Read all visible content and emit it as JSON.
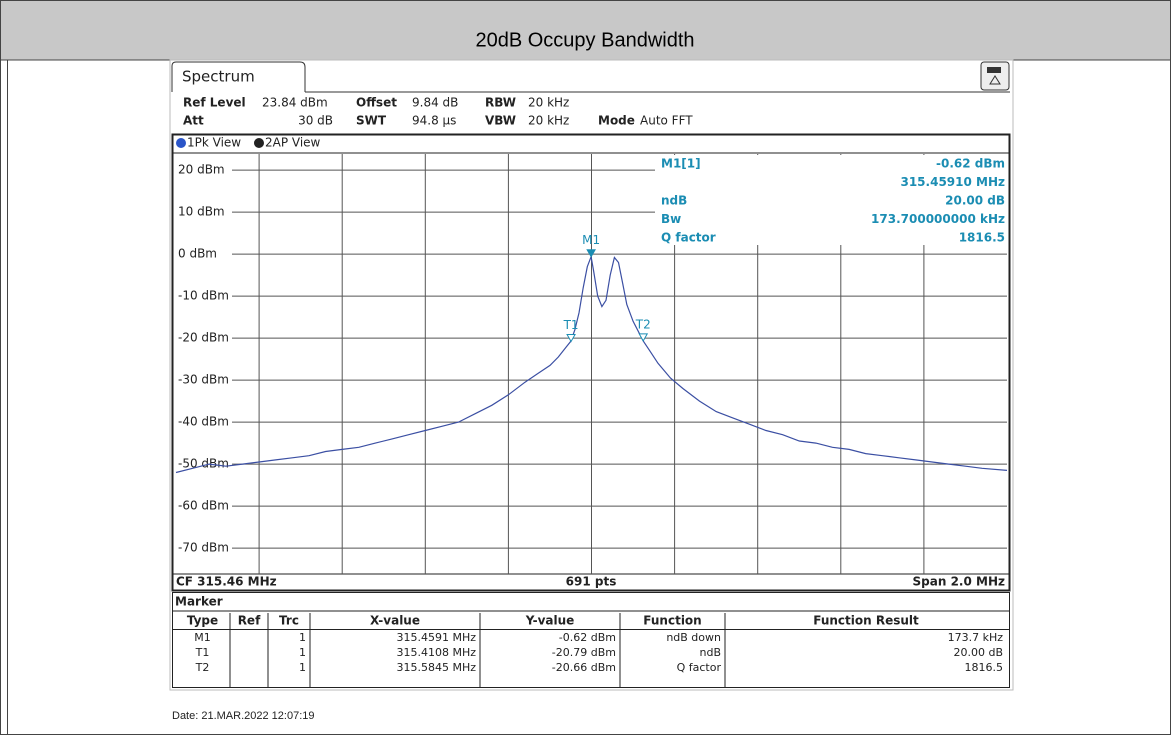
{
  "page_title": "20dB Occupy Bandwidth",
  "tab": "Spectrum",
  "settings": [
    [
      [
        "Ref Level",
        "23.84 dBm"
      ],
      [
        "Offset",
        "9.84 dB"
      ],
      [
        "RBW",
        "20 kHz"
      ]
    ],
    [
      [
        "Att",
        "30 dB"
      ],
      [
        "SWT",
        "94.8 µs"
      ],
      [
        "VBW",
        "20 kHz"
      ],
      [
        "Mode",
        "Auto FFT"
      ]
    ]
  ],
  "views": [
    "1Pk View",
    "2AP View"
  ],
  "readout": [
    [
      "M1[1]",
      "-0.62 dBm"
    ],
    [
      null,
      "315.45910 MHz"
    ],
    [
      "ndB",
      "20.00 dB"
    ],
    [
      "Bw",
      "173.700000000 kHz"
    ],
    [
      "Q factor",
      "1816.5"
    ]
  ],
  "chart_data": {
    "type": "line",
    "color": "#3b4fa3",
    "x": [
      314.46,
      314.5,
      314.54,
      314.58,
      314.62,
      314.66,
      314.7,
      314.74,
      314.78,
      314.82,
      314.86,
      314.9,
      314.94,
      314.98,
      315.02,
      315.06,
      315.1,
      315.14,
      315.18,
      315.22,
      315.26,
      315.3,
      315.33,
      315.36,
      315.38,
      315.4,
      315.41,
      315.42,
      315.43,
      315.44,
      315.45,
      315.4591,
      315.465,
      315.475,
      315.485,
      315.495,
      315.505,
      315.515,
      315.525,
      315.535,
      315.545,
      315.56,
      315.5845,
      315.6,
      315.62,
      315.65,
      315.68,
      315.72,
      315.76,
      315.8,
      315.84,
      315.88,
      315.92,
      315.96,
      316.0,
      316.04,
      316.08,
      316.12,
      316.16,
      316.2,
      316.24,
      316.28,
      316.32,
      316.36,
      316.4,
      316.46
    ],
    "values": [
      -52,
      -51,
      -50,
      -50.5,
      -50,
      -49.5,
      -49,
      -48.5,
      -48,
      -47,
      -46.5,
      -46,
      -45,
      -44,
      -43,
      -42,
      -41,
      -40,
      -38,
      -36,
      -33.5,
      -30.5,
      -28.5,
      -26.5,
      -24.5,
      -22,
      -20.79,
      -18,
      -14,
      -8,
      -3,
      -0.62,
      -4,
      -10,
      -12.5,
      -11,
      -5,
      -0.8,
      -2,
      -7,
      -12,
      -16,
      -20.66,
      -23,
      -26,
      -29.5,
      -32,
      -35,
      -37.5,
      -39,
      -40.5,
      -42,
      -43,
      -44.5,
      -45,
      -46,
      -46.5,
      -47.5,
      -48,
      -48.5,
      -49,
      -49.5,
      -50,
      -50.5,
      -51,
      -51.5
    ],
    "xlim": [
      314.46,
      316.46
    ],
    "x_gridlines": [
      314.66,
      314.86,
      315.06,
      315.26,
      315.46,
      315.66,
      315.86,
      316.06,
      316.26
    ],
    "ylim": [
      -76.16,
      23.84
    ],
    "yticks": [
      {
        "value": 20,
        "label": "20 dBm"
      },
      {
        "value": 10,
        "label": "10 dBm"
      },
      {
        "value": 0,
        "label": "0 dBm"
      },
      {
        "value": -10,
        "label": "-10 dBm"
      },
      {
        "value": -20,
        "label": "-20 dBm"
      },
      {
        "value": -30,
        "label": "-30 dBm"
      },
      {
        "value": -40,
        "label": "-40 dBm"
      },
      {
        "value": -50,
        "label": "-50 dBm"
      },
      {
        "value": -60,
        "label": "-60 dBm"
      },
      {
        "value": -70,
        "label": "-70 dBm"
      }
    ],
    "grid": true,
    "markers": [
      {
        "label": "M1",
        "x": 315.4591,
        "y": -0.62,
        "filled": true
      },
      {
        "label": "T1",
        "x": 315.4108,
        "y": -20.79,
        "filled": false
      },
      {
        "label": "T2",
        "x": 315.5845,
        "y": -20.66,
        "filled": false
      }
    ],
    "footer": [
      "CF 315.46 MHz",
      "691 pts",
      "Span 2.0 MHz"
    ]
  },
  "marker_table": {
    "title": "Marker",
    "header": [
      "Type",
      "Ref",
      "Trc",
      "X-value",
      "Y-value",
      "Function",
      "Function Result"
    ],
    "rows": [
      [
        "M1",
        "",
        "1",
        "315.4591 MHz",
        "-0.62 dBm",
        "ndB down",
        "173.7 kHz"
      ],
      [
        "T1",
        "",
        "1",
        "315.4108 MHz",
        "-20.79 dBm",
        "ndB",
        "20.00 dB"
      ],
      [
        "T2",
        "",
        "1",
        "315.5845 MHz",
        "-20.66 dBm",
        "Q factor",
        "1816.5"
      ]
    ]
  },
  "date": "Date: 21.MAR.2022  12:07:19"
}
